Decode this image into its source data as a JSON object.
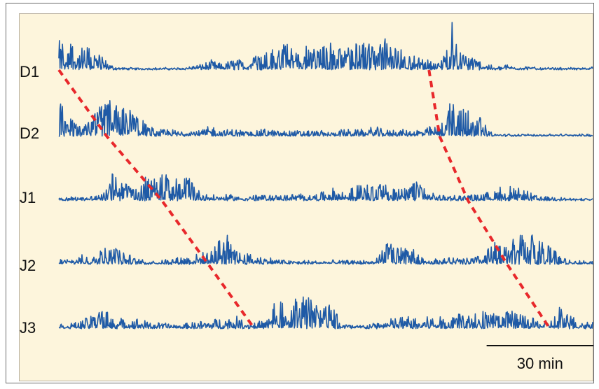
{
  "chart_data": {
    "type": "line",
    "title": "",
    "xlabel": "",
    "ylabel": "",
    "colors": {
      "trace": "#1f5aa6",
      "wave": "#e8282b",
      "background": "#fdf5dc",
      "scale_bar": "#111111"
    },
    "grid": false,
    "legend": "none",
    "series": [
      {
        "name": "D1",
        "activity": [
          0.7,
          0.9,
          0.5,
          0.6,
          0.3,
          0.05,
          0,
          0,
          0,
          0,
          0,
          0,
          0.05,
          0.1,
          0.2,
          0.1,
          0.25,
          0.2,
          0.4,
          0.6,
          0.5,
          0.7,
          0.4,
          0.6,
          0.55,
          0.7,
          0.5,
          0.6,
          0.7,
          0.55,
          0.8,
          0.5,
          0.4,
          0.3,
          0.2,
          0.15,
          1.2,
          0.6,
          0.3,
          0.2,
          0,
          0.1,
          0.05,
          0.05,
          0,
          0,
          0,
          0,
          0,
          0.05
        ]
      },
      {
        "name": "D2",
        "activity": [
          1.0,
          0.4,
          0.2,
          0.4,
          0.8,
          0.9,
          0.7,
          0.5,
          0.3,
          0.1,
          0.15,
          0.1,
          0.2,
          0.1,
          0.25,
          0.1,
          0.15,
          0.1,
          0.1,
          0.15,
          0.1,
          0.1,
          0.1,
          0.1,
          0.1,
          0.05,
          0.15,
          0.1,
          0.15,
          0.2,
          0.1,
          0.15,
          0.1,
          0.15,
          0.2,
          0.25,
          0.9,
          1.0,
          0.7,
          0.3,
          0,
          0,
          0,
          0,
          0,
          0,
          0,
          0,
          0,
          0
        ]
      },
      {
        "name": "J1",
        "activity": [
          0.05,
          0.05,
          0.05,
          0.1,
          0.1,
          0.7,
          0.4,
          0.3,
          0.6,
          0.5,
          0.7,
          0.6,
          0.5,
          0.2,
          0.1,
          0.1,
          0.1,
          0.05,
          0.1,
          0.1,
          0.1,
          0.1,
          0.15,
          0.1,
          0.15,
          0.3,
          0.2,
          0.3,
          0.4,
          0.35,
          0.4,
          0.3,
          0.25,
          0.5,
          0.15,
          0.1,
          0.1,
          0.1,
          0.1,
          0.15,
          0.2,
          0.4,
          0.3,
          0.2,
          0.05,
          0.05,
          0.05,
          0,
          0,
          0
        ]
      },
      {
        "name": "J2",
        "activity": [
          0.1,
          0.1,
          0.2,
          0.1,
          0.4,
          0.5,
          0.3,
          0.1,
          0.05,
          0.05,
          0.1,
          0.15,
          0.2,
          0.25,
          0.3,
          0.8,
          0.5,
          0.25,
          0.2,
          0.15,
          0.1,
          0.05,
          0.05,
          0.05,
          0.05,
          0.05,
          0.05,
          0.05,
          0.05,
          0.05,
          0.6,
          0.4,
          0.35,
          0.3,
          0.1,
          0.1,
          0.15,
          0.1,
          0.15,
          0.2,
          0.6,
          0.4,
          0.7,
          0.8,
          0.6,
          0.5,
          0.15,
          0.05,
          0.05,
          0.05
        ]
      },
      {
        "name": "J3",
        "activity": [
          0.05,
          0.1,
          0.15,
          0.3,
          0.5,
          0.3,
          0.2,
          0.25,
          0.15,
          0.1,
          0.1,
          0.05,
          0.1,
          0.15,
          0.2,
          0.25,
          0.3,
          0.2,
          0.15,
          0.15,
          0.9,
          0.6,
          0.8,
          0.7,
          0.5,
          0.6,
          0.1,
          0.05,
          0.05,
          0.1,
          0.2,
          0.25,
          0.3,
          0.2,
          0.3,
          0.25,
          0.3,
          0.35,
          0.3,
          0.4,
          0.35,
          0.45,
          0.35,
          0.25,
          0.2,
          0.15,
          0.5,
          0.3,
          0.2,
          0.15
        ]
      }
    ],
    "wave_onsets": {
      "label": "",
      "waves": [
        {
          "onsets_min": [
            0,
            13.5,
            29,
            42,
            55
          ]
        },
        {
          "onsets_min": [
            104,
            107,
            115,
            126,
            138
          ]
        }
      ]
    },
    "scale_bar": {
      "length_min": 30,
      "label": "30 min"
    },
    "x_range_min": [
      0,
      150
    ]
  }
}
